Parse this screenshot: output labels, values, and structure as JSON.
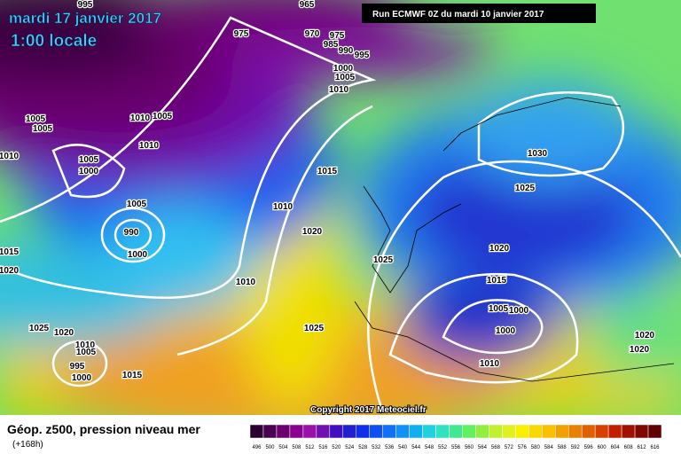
{
  "header": {
    "date": "mardi 17 janvier 2017",
    "time": "1:00 locale",
    "run": "Run ECMWF 0Z du mardi 10 janvier 2017"
  },
  "footer": {
    "title": "Géop. z500, pression niveau mer",
    "lead": "(+168h)",
    "copyright": "Copyright 2017 Meteociel.fr"
  },
  "legend": {
    "labels": [
      "496",
      "500",
      "504",
      "508",
      "512",
      "516",
      "520",
      "524",
      "528",
      "532",
      "536",
      "540",
      "544",
      "548",
      "552",
      "556",
      "560",
      "564",
      "568",
      "572",
      "576",
      "580",
      "584",
      "588",
      "592",
      "596",
      "600",
      "604",
      "608",
      "612",
      "616"
    ],
    "colors": [
      "#2a0030",
      "#4a0050",
      "#6a006e",
      "#8a0090",
      "#9a10a8",
      "#7010b0",
      "#4010c0",
      "#2020d0",
      "#1030e8",
      "#1050f0",
      "#1070f8",
      "#1090f8",
      "#10b0f0",
      "#20d0e0",
      "#30e0c0",
      "#40e890",
      "#60f060",
      "#90f040",
      "#c0f030",
      "#e0f020",
      "#f8f000",
      "#f8d800",
      "#f8c000",
      "#f0a000",
      "#e88000",
      "#e06000",
      "#d84000",
      "#c02000",
      "#a01000",
      "#800800",
      "#600000"
    ]
  },
  "isobar_labels": [
    "995",
    "965",
    "975",
    "970",
    "975",
    "985",
    "990",
    "995",
    "1000",
    "1005",
    "1010",
    "1005",
    "1005",
    "1010",
    "1005",
    "1010",
    "1010",
    "1005",
    "1000",
    "1015",
    "1030",
    "1025",
    "1005",
    "1010",
    "990",
    "1000",
    "1020",
    "1015",
    "1020",
    "1025",
    "1020",
    "1010",
    "1015",
    "1005",
    "1000",
    "1000",
    "1025",
    "1020",
    "1025",
    "1010",
    "1005",
    "995",
    "1000",
    "1015",
    "1010",
    "1020",
    "1020"
  ]
}
